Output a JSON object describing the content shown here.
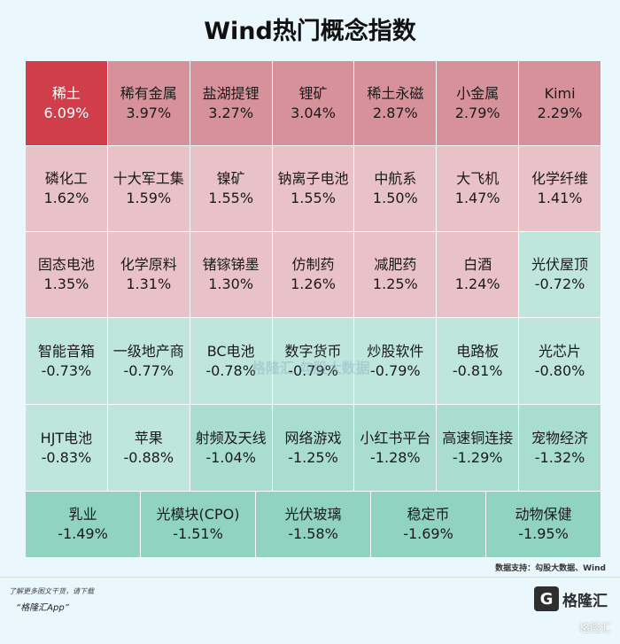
{
  "title": "Wind热门概念指数",
  "chart_data": {
    "type": "heatmap",
    "title": "Wind热门概念指数",
    "unit": "%",
    "rows": [
      [
        {
          "name": "稀土",
          "value": "6.09%"
        },
        {
          "name": "稀有金属",
          "value": "3.97%"
        },
        {
          "name": "盐湖提锂",
          "value": "3.27%"
        },
        {
          "name": "锂矿",
          "value": "3.04%"
        },
        {
          "name": "稀土永磁",
          "value": "2.87%"
        },
        {
          "name": "小金属",
          "value": "2.79%"
        },
        {
          "name": "Kimi",
          "value": "2.29%"
        }
      ],
      [
        {
          "name": "磷化工",
          "value": "1.62%"
        },
        {
          "name": "十大军工集",
          "value": "1.59%"
        },
        {
          "name": "镍矿",
          "value": "1.55%"
        },
        {
          "name": "钠离子电池",
          "value": "1.55%"
        },
        {
          "name": "中航系",
          "value": "1.50%"
        },
        {
          "name": "大飞机",
          "value": "1.47%"
        },
        {
          "name": "化学纤维",
          "value": "1.41%"
        }
      ],
      [
        {
          "name": "固态电池",
          "value": "1.35%"
        },
        {
          "name": "化学原料",
          "value": "1.31%"
        },
        {
          "name": "锗镓锑墨",
          "value": "1.30%"
        },
        {
          "name": "仿制药",
          "value": "1.26%"
        },
        {
          "name": "减肥药",
          "value": "1.25%"
        },
        {
          "name": "白酒",
          "value": "1.24%"
        },
        {
          "name": "光伏屋顶",
          "value": "-0.72%"
        }
      ],
      [
        {
          "name": "智能音箱",
          "value": "-0.73%"
        },
        {
          "name": "一级地产商",
          "value": "-0.77%"
        },
        {
          "name": "BC电池",
          "value": "-0.78%"
        },
        {
          "name": "数字货币",
          "value": "-0.79%"
        },
        {
          "name": "炒股软件",
          "value": "-0.79%"
        },
        {
          "name": "电路板",
          "value": "-0.81%"
        },
        {
          "name": "光芯片",
          "value": "-0.80%"
        }
      ],
      [
        {
          "name": "HJT电池",
          "value": "-0.83%"
        },
        {
          "name": "苹果",
          "value": "-0.88%"
        },
        {
          "name": "射频及天线",
          "value": "-1.04%"
        },
        {
          "name": "网络游戏",
          "value": "-1.25%"
        },
        {
          "name": "小红书平台",
          "value": "-1.28%"
        },
        {
          "name": "高速铜连接",
          "value": "-1.29%"
        },
        {
          "name": "宠物经济",
          "value": "-1.32%"
        }
      ],
      [
        {
          "name": "乳业",
          "value": "-1.49%"
        },
        {
          "name": "光模块(CPO)",
          "value": "-1.51%"
        },
        {
          "name": "光伏玻璃",
          "value": "-1.58%"
        },
        {
          "name": "稳定币",
          "value": "-1.69%"
        },
        {
          "name": "动物保健",
          "value": "-1.95%"
        }
      ]
    ],
    "colors": {
      "hot": "#cf3e4a",
      "up_strong": "#d7919a",
      "up_mid": "#e1a9b0",
      "up_light": "#e9c2c7",
      "down_light": "#bfe6dd",
      "down_mid": "#a8ddd0",
      "down_strong": "#8fd3c0"
    }
  },
  "source": "数据支持：勾股大数据、Wind",
  "promo": {
    "line1": "了解更多图文干货，请下载",
    "line2": "“格隆汇App”"
  },
  "logo": {
    "mark": "G",
    "text": "格隆汇"
  },
  "watermark": "格隆汇  勾股大数据",
  "corner_mark": "格隆汇"
}
